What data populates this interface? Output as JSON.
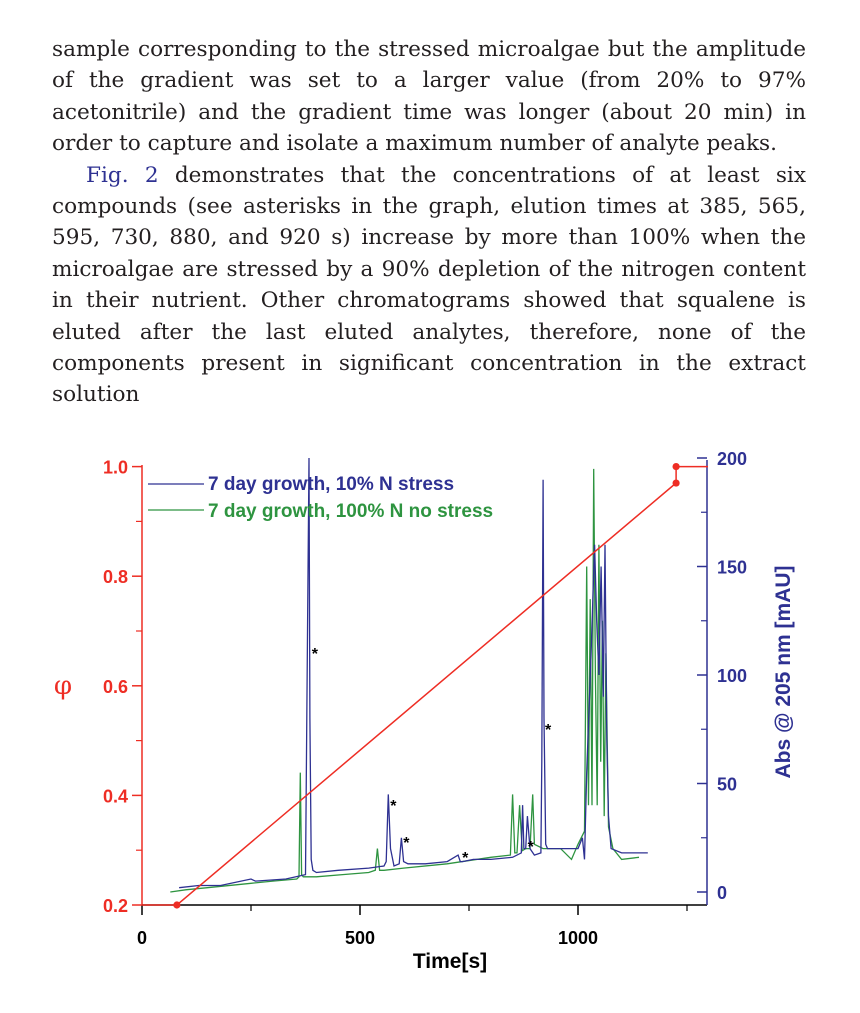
{
  "article": {
    "paragraph1": "sample corresponding to the stressed microalgae but the amplitude of the gradient was set to a larger value (from 20% to 97% acetonitrile) and the gradient time was longer (about 20 min) in order to capture and isolate a maximum number of analyte peaks.",
    "paragraph2_link": "Fig. 2",
    "paragraph2_rest": " demonstrates that the concentrations of at least six compounds (see asterisks in the graph, elution times at 385, 565, 595, 730, 880, and 920 s) increase by more than 100% when the microalgae are stressed by a 90% depletion of the nitrogen content in their nutrient. Other chromatograms showed that squalene is eluted after the last eluted analytes, therefore, none of the components present in significant concentration in the extract solution"
  },
  "colors": {
    "text": "#231f20",
    "link": "#2e3192",
    "gradient": "#ee2d24",
    "stressed": "#2e3192",
    "no_stress": "#2e9440",
    "axis": "#000000"
  },
  "chart_data": {
    "type": "line",
    "title": "",
    "xlabel": "Time[s]",
    "ylabel_left": "φ",
    "ylabel_right": "Abs @ 205 nm [mAU]",
    "xlim": [
      0,
      1300
    ],
    "ylim_left": [
      0.2,
      1.0
    ],
    "ylim_right": [
      0,
      200
    ],
    "x_ticks": [
      "0",
      "500",
      "1000"
    ],
    "left_ticks": [
      "0.2",
      "0.4",
      "0.6",
      "0.8",
      "1.0"
    ],
    "right_ticks": [
      "0",
      "50",
      "100",
      "150",
      "200"
    ],
    "legend": [
      {
        "name": "7 day growth, 10% N stress",
        "color": "#2e3192"
      },
      {
        "name": "7 day growth, 100% N no stress",
        "color": "#2e9440"
      }
    ],
    "gradient_series": {
      "name": "φ gradient",
      "x": [
        0,
        80,
        80,
        1225,
        1225,
        1300
      ],
      "y": [
        0.2,
        0.2,
        0.2,
        0.97,
        1.0,
        1.0
      ]
    },
    "stressed_series": {
      "name": "7 day growth, 10% N stress",
      "x": [
        85,
        130,
        180,
        250,
        260,
        330,
        375,
        380,
        383,
        385,
        388,
        392,
        400,
        450,
        520,
        555,
        560,
        565,
        570,
        578,
        590,
        595,
        600,
        610,
        650,
        700,
        725,
        730,
        735,
        760,
        800,
        850,
        870,
        873,
        876,
        880,
        884,
        890,
        900,
        915,
        917,
        920,
        922,
        926,
        930,
        960,
        1000,
        1010,
        1015,
        1020,
        1030,
        1038,
        1043,
        1048,
        1053,
        1058,
        1062,
        1066,
        1070,
        1076,
        1100,
        1160
      ],
      "y": [
        2,
        3,
        3,
        6,
        5,
        6,
        8,
        130,
        200,
        80,
        15,
        10,
        9,
        10,
        11,
        12,
        14,
        45,
        20,
        12,
        13,
        25,
        14,
        13,
        13,
        14,
        17,
        14,
        14,
        15,
        15,
        16,
        18,
        40,
        20,
        20,
        35,
        20,
        17,
        18,
        60,
        190,
        80,
        22,
        20,
        20,
        20,
        25,
        15,
        55,
        110,
        160,
        125,
        100,
        150,
        90,
        160,
        70,
        35,
        20,
        18,
        18
      ]
    },
    "no_stress_series": {
      "name": "7 day growth, 100% N no stress",
      "x": [
        65,
        100,
        150,
        250,
        300,
        355,
        360,
        363,
        366,
        370,
        400,
        460,
        520,
        535,
        540,
        545,
        555,
        600,
        700,
        800,
        845,
        850,
        855,
        860,
        866,
        872,
        880,
        890,
        896,
        900,
        920,
        960,
        985,
        1000,
        1015,
        1020,
        1024,
        1028,
        1032,
        1036,
        1040,
        1044,
        1048,
        1052,
        1056,
        1060,
        1064,
        1070,
        1080,
        1100,
        1140
      ],
      "y": [
        0,
        1,
        2,
        4,
        5,
        6,
        7,
        55,
        8,
        7,
        7,
        8,
        9,
        10,
        20,
        10,
        10,
        11,
        13,
        16,
        17,
        45,
        18,
        18,
        40,
        19,
        20,
        20,
        45,
        22,
        20,
        20,
        15,
        22,
        28,
        150,
        40,
        135,
        40,
        195,
        100,
        40,
        160,
        60,
        125,
        35,
        110,
        30,
        20,
        15,
        16
      ]
    },
    "asterisks": [
      {
        "x": 385,
        "y": 112,
        "label": "*"
      },
      {
        "x": 565,
        "y": 42,
        "label": "*"
      },
      {
        "x": 595,
        "y": 25,
        "label": "*"
      },
      {
        "x": 730,
        "y": 18,
        "label": "*"
      },
      {
        "x": 880,
        "y": 23,
        "label": "*"
      },
      {
        "x": 920,
        "y": 77,
        "label": "*"
      }
    ]
  }
}
